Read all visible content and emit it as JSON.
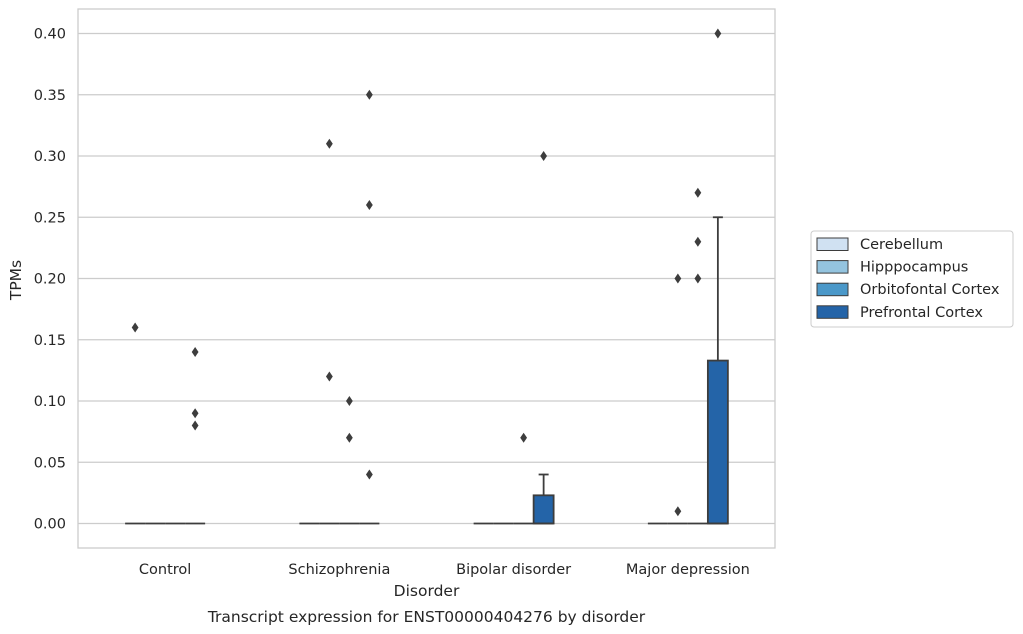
{
  "chart_data": {
    "type": "boxplot",
    "title": "Transcript expression for ENST00000404276 by disorder",
    "xlabel": "Disorder",
    "ylabel": "TPMs",
    "ylim": [
      -0.02,
      0.42
    ],
    "yticks": [
      0.0,
      0.05,
      0.1,
      0.15,
      0.2,
      0.25,
      0.3,
      0.35,
      0.4
    ],
    "ytick_labels": [
      "0.00",
      "0.05",
      "0.10",
      "0.15",
      "0.20",
      "0.25",
      "0.30",
      "0.35",
      "0.40"
    ],
    "grid": true,
    "legend_position": "right",
    "categories": [
      "Control",
      "Schizophrenia",
      "Bipolar disorder",
      "Major depression"
    ],
    "series": [
      {
        "name": "Cerebellum",
        "color": "#d0e1f2",
        "boxes": [
          {
            "q1": 0,
            "median": 0,
            "q3": 0,
            "whisker_low": 0,
            "whisker_high": 0,
            "outliers": [
              0.16
            ]
          },
          {
            "q1": 0,
            "median": 0,
            "q3": 0,
            "whisker_low": 0,
            "whisker_high": 0,
            "outliers": []
          },
          {
            "q1": 0,
            "median": 0,
            "q3": 0,
            "whisker_low": 0,
            "whisker_high": 0,
            "outliers": []
          },
          {
            "q1": 0,
            "median": 0,
            "q3": 0,
            "whisker_low": 0,
            "whisker_high": 0,
            "outliers": []
          }
        ]
      },
      {
        "name": "Hipppocampus",
        "color": "#94c4df",
        "boxes": [
          {
            "q1": 0,
            "median": 0,
            "q3": 0,
            "whisker_low": 0,
            "whisker_high": 0,
            "outliers": []
          },
          {
            "q1": 0,
            "median": 0,
            "q3": 0,
            "whisker_low": 0,
            "whisker_high": 0,
            "outliers": [
              0.31,
              0.12
            ]
          },
          {
            "q1": 0,
            "median": 0,
            "q3": 0,
            "whisker_low": 0,
            "whisker_high": 0,
            "outliers": []
          },
          {
            "q1": 0,
            "median": 0,
            "q3": 0,
            "whisker_low": 0,
            "whisker_high": 0,
            "outliers": [
              0.2,
              0.01
            ]
          }
        ]
      },
      {
        "name": "Orbitofontal Cortex",
        "color": "#4a98c9",
        "boxes": [
          {
            "q1": 0,
            "median": 0,
            "q3": 0,
            "whisker_low": 0,
            "whisker_high": 0,
            "outliers": []
          },
          {
            "q1": 0,
            "median": 0,
            "q3": 0,
            "whisker_low": 0,
            "whisker_high": 0,
            "outliers": [
              0.1,
              0.07
            ]
          },
          {
            "q1": 0,
            "median": 0,
            "q3": 0,
            "whisker_low": 0,
            "whisker_high": 0,
            "outliers": [
              0.07
            ]
          },
          {
            "q1": 0,
            "median": 0,
            "q3": 0,
            "whisker_low": 0,
            "whisker_high": 0,
            "outliers": [
              0.27,
              0.2,
              0.23
            ]
          }
        ]
      },
      {
        "name": "Prefrontal Cortex",
        "color": "#2464a8",
        "boxes": [
          {
            "q1": 0,
            "median": 0,
            "q3": 0,
            "whisker_low": 0,
            "whisker_high": 0,
            "outliers": [
              0.14,
              0.09,
              0.08
            ]
          },
          {
            "q1": 0,
            "median": 0,
            "q3": 0,
            "whisker_low": 0,
            "whisker_high": 0,
            "outliers": [
              0.35,
              0.26,
              0.04
            ]
          },
          {
            "q1": 0,
            "median": 0,
            "q3": 0.023,
            "whisker_low": 0,
            "whisker_high": 0.04,
            "outliers": [
              0.3
            ]
          },
          {
            "q1": 0,
            "median": 0,
            "q3": 0.133,
            "whisker_low": 0,
            "whisker_high": 0.25,
            "outliers": [
              0.4
            ]
          }
        ]
      }
    ]
  }
}
